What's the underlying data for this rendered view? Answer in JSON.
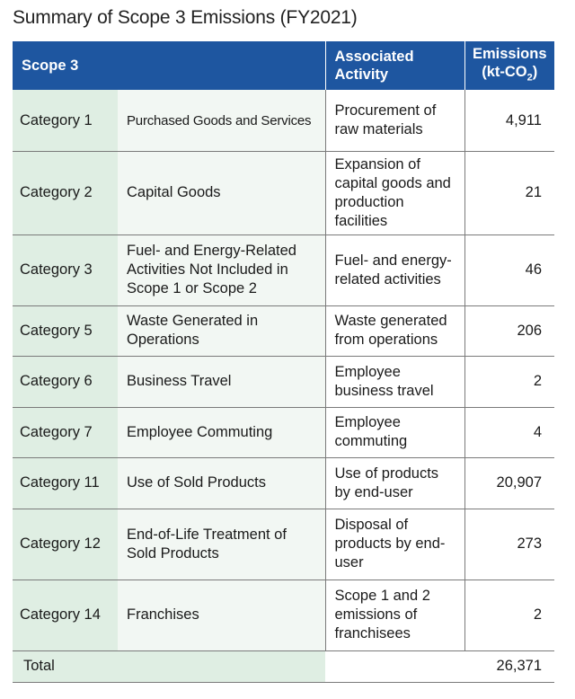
{
  "title": "Summary of Scope 3 Emissions (FY2021)",
  "headers": {
    "scope": "Scope 3",
    "activity": "Associated Activity",
    "emissions_line1": "Emissions",
    "emissions_line2_prefix": "(kt-CO",
    "emissions_sub": "2",
    "emissions_line2_suffix": ")"
  },
  "rows": [
    {
      "category": "Category 1",
      "name": "Purchased Goods and Services",
      "activity": "Procurement of raw materials",
      "emissions": "4,911"
    },
    {
      "category": "Category 2",
      "name": "Capital Goods",
      "activity": "Expansion of capital goods and production facilities",
      "emissions": "21"
    },
    {
      "category": "Category 3",
      "name": "Fuel- and Energy-Related Activities Not Included in Scope 1 or Scope 2",
      "activity": "Fuel- and energy-related activities",
      "emissions": "46"
    },
    {
      "category": "Category 5",
      "name": "Waste Generated in Operations",
      "activity": "Waste generated from operations",
      "emissions": "206"
    },
    {
      "category": "Category 6",
      "name": "Business Travel",
      "activity": "Employee business travel",
      "emissions": "2"
    },
    {
      "category": "Category 7",
      "name": "Employee Commuting",
      "activity": "Employee commuting",
      "emissions": "4"
    },
    {
      "category": "Category 11",
      "name": "Use of Sold Products",
      "activity": "Use of products by end-user",
      "emissions": "20,907"
    },
    {
      "category": "Category 12",
      "name": "End-of-Life Treatment of Sold Products",
      "activity": "Disposal of products by end-user",
      "emissions": "273"
    },
    {
      "category": "Category 14",
      "name": "Franchises",
      "activity": "Scope 1 and 2 emissions of franchisees",
      "emissions": "2"
    }
  ],
  "total": {
    "label": "Total",
    "value": "26,371"
  }
}
